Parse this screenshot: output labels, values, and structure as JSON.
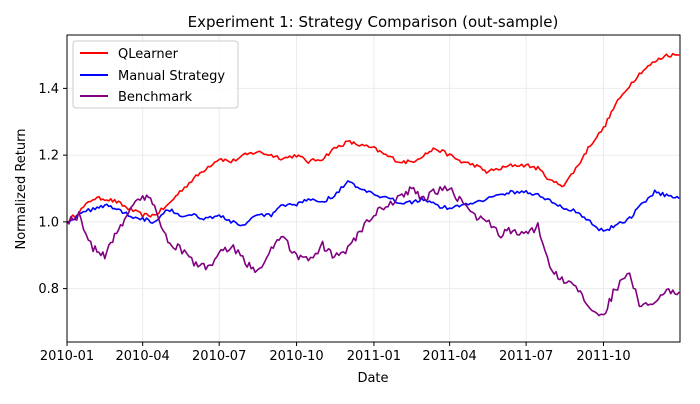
{
  "chart_data": {
    "type": "line",
    "title": "Experiment 1: Strategy Comparison (out-sample)",
    "xlabel": "Date",
    "ylabel": "Normalized Return",
    "xlim": [
      "2010-01-01",
      "2011-12-31"
    ],
    "ylim": [
      0.64,
      1.56
    ],
    "grid": true,
    "legend_position": "top-left",
    "x_ticks": [
      {
        "date": "2010-01-01",
        "label": "2010-01"
      },
      {
        "date": "2010-04-01",
        "label": "2010-04"
      },
      {
        "date": "2010-07-01",
        "label": "2010-07"
      },
      {
        "date": "2010-10-01",
        "label": "2010-10"
      },
      {
        "date": "2011-01-01",
        "label": "2011-01"
      },
      {
        "date": "2011-04-01",
        "label": "2011-04"
      },
      {
        "date": "2011-07-01",
        "label": "2011-07"
      },
      {
        "date": "2011-10-01",
        "label": "2011-10"
      }
    ],
    "y_ticks": [
      {
        "value": 0.8,
        "label": "0.8"
      },
      {
        "value": 1.0,
        "label": "1.0"
      },
      {
        "value": 1.2,
        "label": "1.2"
      },
      {
        "value": 1.4,
        "label": "1.4"
      }
    ],
    "x": [
      "2010-01-01",
      "2010-01-15",
      "2010-02-01",
      "2010-02-15",
      "2010-03-01",
      "2010-03-15",
      "2010-04-01",
      "2010-04-15",
      "2010-05-01",
      "2010-05-15",
      "2010-06-01",
      "2010-06-15",
      "2010-07-01",
      "2010-07-15",
      "2010-08-01",
      "2010-08-15",
      "2010-09-01",
      "2010-09-15",
      "2010-10-01",
      "2010-10-15",
      "2010-11-01",
      "2010-11-15",
      "2010-12-01",
      "2010-12-15",
      "2011-01-01",
      "2011-01-15",
      "2011-02-01",
      "2011-02-15",
      "2011-03-01",
      "2011-03-15",
      "2011-04-01",
      "2011-04-15",
      "2011-05-01",
      "2011-05-15",
      "2011-06-01",
      "2011-06-15",
      "2011-07-01",
      "2011-07-15",
      "2011-08-01",
      "2011-08-15",
      "2011-09-01",
      "2011-09-15",
      "2011-10-01",
      "2011-10-15",
      "2011-11-01",
      "2011-11-15",
      "2011-12-01",
      "2011-12-15",
      "2011-12-30"
    ],
    "series": [
      {
        "name": "QLearner",
        "color": "#ff0000",
        "values": [
          1.0,
          1.03,
          1.07,
          1.07,
          1.06,
          1.04,
          1.02,
          1.02,
          1.05,
          1.09,
          1.13,
          1.16,
          1.19,
          1.18,
          1.2,
          1.21,
          1.2,
          1.19,
          1.2,
          1.18,
          1.19,
          1.22,
          1.24,
          1.23,
          1.22,
          1.2,
          1.18,
          1.18,
          1.2,
          1.22,
          1.2,
          1.18,
          1.17,
          1.15,
          1.16,
          1.17,
          1.17,
          1.16,
          1.12,
          1.11,
          1.17,
          1.23,
          1.28,
          1.35,
          1.41,
          1.45,
          1.48,
          1.5,
          1.5
        ]
      },
      {
        "name": "Manual Strategy",
        "color": "#0000ff",
        "values": [
          1.0,
          1.02,
          1.04,
          1.05,
          1.04,
          1.02,
          1.01,
          1.0,
          1.04,
          1.02,
          1.02,
          1.01,
          1.02,
          1.0,
          0.99,
          1.02,
          1.02,
          1.05,
          1.05,
          1.07,
          1.06,
          1.08,
          1.12,
          1.1,
          1.08,
          1.07,
          1.06,
          1.06,
          1.07,
          1.05,
          1.04,
          1.05,
          1.06,
          1.07,
          1.08,
          1.09,
          1.09,
          1.08,
          1.06,
          1.04,
          1.03,
          1.0,
          0.97,
          0.99,
          1.01,
          1.05,
          1.09,
          1.08,
          1.07
        ]
      },
      {
        "name": "Benchmark",
        "color": "#800080",
        "values": [
          1.0,
          1.02,
          0.92,
          0.9,
          0.97,
          1.03,
          1.08,
          1.05,
          0.94,
          0.92,
          0.88,
          0.86,
          0.9,
          0.93,
          0.88,
          0.85,
          0.92,
          0.95,
          0.9,
          0.88,
          0.93,
          0.89,
          0.92,
          0.97,
          1.02,
          1.05,
          1.07,
          1.1,
          1.07,
          1.09,
          1.1,
          1.06,
          1.02,
          1.0,
          0.96,
          0.98,
          0.96,
          0.99,
          0.85,
          0.82,
          0.8,
          0.74,
          0.72,
          0.8,
          0.84,
          0.74,
          0.76,
          0.79,
          0.79
        ]
      }
    ]
  }
}
